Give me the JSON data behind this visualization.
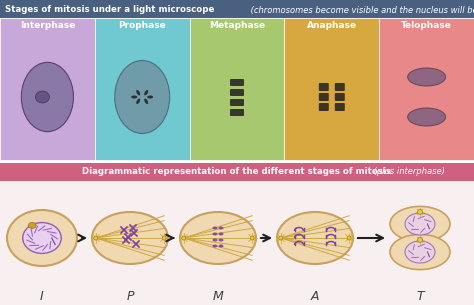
{
  "title_top_bold": "Stages of mitosis under a light microscope",
  "title_top_italic": " (chromosomes become visible and the nucleus will be absent)",
  "title_bottom_bold": "Diagrammatic representation of the different stages of mitosis",
  "title_bottom_italic": " (plus interphase)",
  "stages_micro": [
    "Interphase",
    "Prophase",
    "Metaphase",
    "Anaphase",
    "Telophase"
  ],
  "stage_labels": [
    "I",
    "P",
    "M",
    "A",
    "T"
  ],
  "micro_colors": [
    "#c8a8d8",
    "#70c8d0",
    "#a8c870",
    "#d8a840",
    "#e88888"
  ],
  "top_bar_color": "#4a6080",
  "bottom_bar_color": "#d06080",
  "bg_color": "#ffffff",
  "diag_bg": "#f8f0f0",
  "cell_fill": "#f0d8b0",
  "cell_stroke": "#c8a060",
  "nucleus_fill": "#e8d0f0",
  "nucleus_stroke": "#9060b0",
  "chromosome_color": "#8040a0",
  "spindle_color": "#c8a030",
  "arrow_color": "#202020",
  "label_color": "#404040"
}
